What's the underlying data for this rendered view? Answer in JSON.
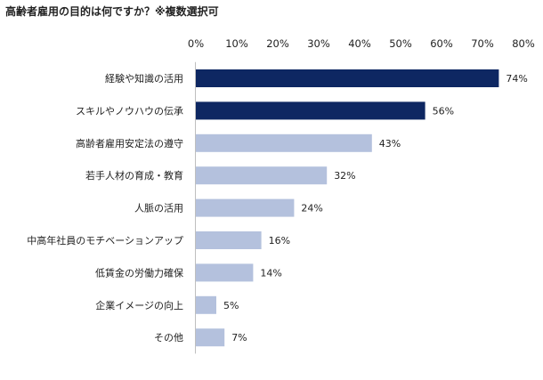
{
  "chart_data": {
    "type": "bar",
    "orientation": "horizontal",
    "title": "高齢者雇用の目的は何ですか？※複数選択可",
    "xlabel": "",
    "ylabel": "",
    "xlim": [
      0,
      80
    ],
    "ticks": [
      "0%",
      "10%",
      "20%",
      "30%",
      "40%",
      "50%",
      "60%",
      "70%",
      "80%"
    ],
    "tick_values": [
      0,
      10,
      20,
      30,
      40,
      50,
      60,
      70,
      80
    ],
    "axis_position": "top",
    "grid": false,
    "categories": [
      "経験や知識の活用",
      "スキルやノウハウの伝承",
      "高齢者雇用安定法の遵守",
      "若手人材の育成・教育",
      "人脈の活用",
      "中高年社員のモチベーションアップ",
      "低賃金の労働力確保",
      "企業イメージの向上",
      "その他"
    ],
    "values": [
      74,
      56,
      43,
      32,
      24,
      16,
      14,
      5,
      7
    ],
    "value_labels": [
      "74%",
      "56%",
      "43%",
      "32%",
      "24%",
      "16%",
      "14%",
      "5%",
      "7%"
    ],
    "highlight_count": 2,
    "colors": {
      "highlight": "#0e2762",
      "normal": "#b4c1dd"
    }
  }
}
